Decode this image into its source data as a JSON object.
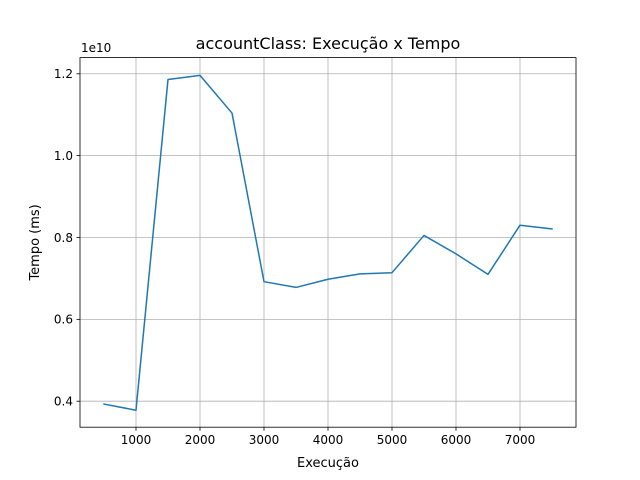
{
  "chart_data": {
    "type": "line",
    "title": "accountClass: Execução x Tempo",
    "xlabel": "Execução",
    "ylabel": "Tempo (ms)",
    "y_offset_text": "1e10",
    "y_scale": 10000000000,
    "xlim": [
      125,
      7875
    ],
    "ylim": [
      0.3365,
      1.2395
    ],
    "x_ticks": [
      1000,
      2000,
      3000,
      4000,
      5000,
      6000,
      7000
    ],
    "x_tick_labels": [
      "1000",
      "2000",
      "3000",
      "4000",
      "5000",
      "6000",
      "7000"
    ],
    "y_ticks": [
      0.4,
      0.6,
      0.8,
      1.0,
      1.2
    ],
    "y_tick_labels": [
      "0.4",
      "0.6",
      "0.8",
      "1.0",
      "1.2"
    ],
    "grid": true,
    "series": [
      {
        "color": "#1f77b4",
        "x": [
          500,
          1000,
          1500,
          2000,
          2500,
          3000,
          3500,
          4000,
          4500,
          5000,
          5500,
          6000,
          6500,
          7000,
          7500
        ],
        "values": [
          0.393,
          0.378,
          1.186,
          1.196,
          1.104,
          0.692,
          0.678,
          0.698,
          0.711,
          0.714,
          0.805,
          0.76,
          0.71,
          0.83,
          0.821
        ]
      }
    ]
  }
}
